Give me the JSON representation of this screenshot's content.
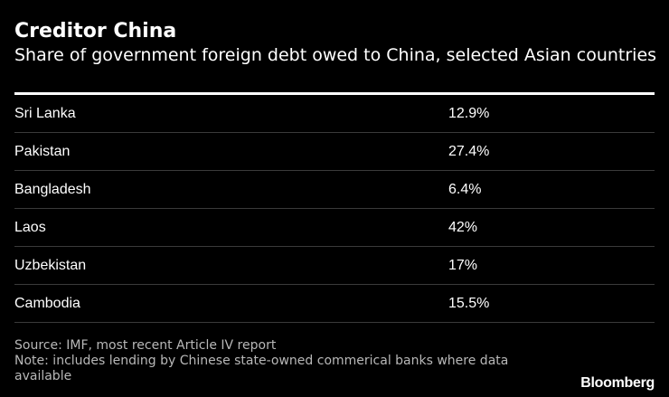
{
  "header": {
    "title": "Creditor China",
    "subtitle": "Share of government foreign debt owed to China, selected Asian countries"
  },
  "chart_data": {
    "type": "table",
    "columns": [
      "",
      ""
    ],
    "rows": [
      {
        "country": "Sri Lanka",
        "share": "12.9%",
        "value": 12.9
      },
      {
        "country": "Pakistan",
        "share": "27.4%",
        "value": 27.4
      },
      {
        "country": "Bangladesh",
        "share": "6.4%",
        "value": 6.4
      },
      {
        "country": "Laos",
        "share": "42%",
        "value": 42
      },
      {
        "country": "Uzbekistan",
        "share": "17%",
        "value": 17
      },
      {
        "country": "Cambodia",
        "share": "15.5%",
        "value": 15.5
      }
    ]
  },
  "footer": {
    "source": "Source: IMF, most recent Article IV report",
    "note": "Note: includes lending by Chinese state-owned commerical banks where data available",
    "logo_text": "Bloomberg"
  },
  "colors": {
    "background": "#000000",
    "text": "#ffffff",
    "muted_text": "#b8b8b8",
    "rule": "#ffffff",
    "row_divider": "#3a3a3a"
  }
}
